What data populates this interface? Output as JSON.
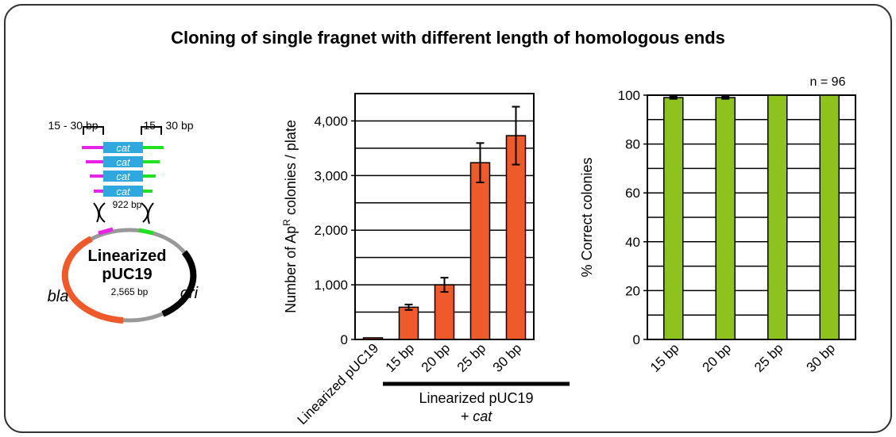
{
  "title": "Cloning of single fragnet with different length of homologous ends",
  "diagram": {
    "left_label": "15 - 30 bp",
    "right_label": "15 - 30 bp",
    "insert_labels": [
      "cat",
      "cat",
      "cat",
      "cat"
    ],
    "insert_size": "922 bp",
    "plasmid_name": [
      "Linearized",
      "pUC19"
    ],
    "plasmid_size": "2,565 bp",
    "bla": "bla",
    "ori": "ori"
  },
  "chart_data": [
    {
      "type": "bar",
      "ylabel_parts": [
        "Number of Ap",
        "R",
        " colonies / plate"
      ],
      "categories": [
        "Linearized pUC19",
        "15 bp",
        "20 bp",
        "25 bp",
        "30 bp"
      ],
      "values": [
        30,
        590,
        1000,
        3235,
        3730
      ],
      "errors": [
        null,
        50,
        130,
        360,
        530
      ],
      "color": "#ee5a2a",
      "ylim": [
        0,
        4500
      ],
      "yticks": [
        0,
        {
          "value": 1000,
          "label": "1,000"
        },
        {
          "value": 2000,
          "label": "2,000"
        },
        {
          "value": 3000,
          "label": "3,000"
        },
        {
          "value": 4000,
          "label": "4,000"
        }
      ],
      "minor_grid": [
        500,
        1500,
        2500,
        3500
      ],
      "grid": true,
      "group_label": "Linearized pUC19",
      "group_sublabel": "+ cat"
    },
    {
      "type": "bar",
      "ylabel": "% Correct colonies",
      "categories": [
        "15 bp",
        "20 bp",
        "25 bp",
        "30 bp"
      ],
      "values": [
        99,
        99,
        100,
        100
      ],
      "errors": [
        0.5,
        0.5,
        null,
        null
      ],
      "color": "#8dc21f",
      "ylim": [
        0,
        100
      ],
      "yticks": [
        0,
        20,
        40,
        60,
        80,
        100
      ],
      "minor_grid": [
        10,
        30,
        50,
        70,
        90
      ],
      "grid": true,
      "annotation": "n = 96"
    }
  ]
}
